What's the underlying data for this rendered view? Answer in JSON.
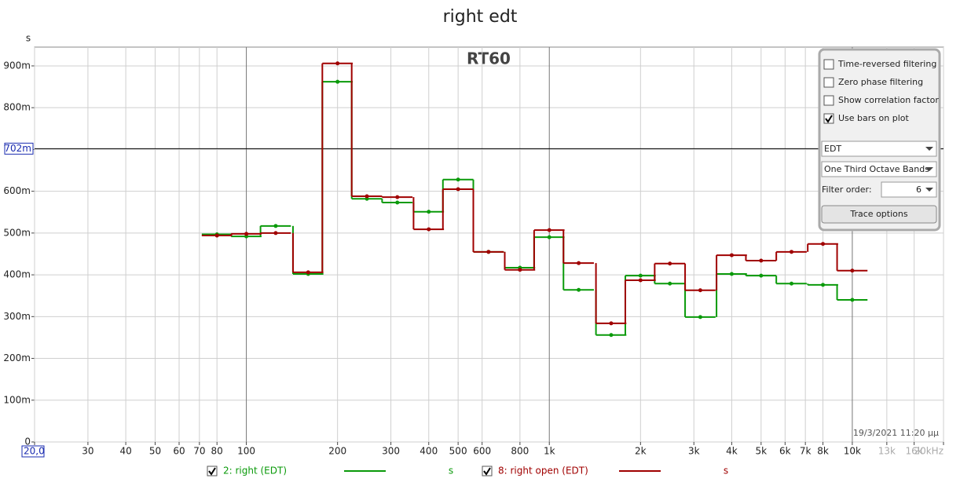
{
  "chart_data": {
    "type": "step",
    "title": "right edt",
    "ylabel": "s",
    "annotation": "RT60",
    "timestamp": "19/3/2021 11:20 μμ",
    "xscale": "log",
    "xlim": [
      20,
      20000
    ],
    "ylim": [
      0,
      0.945
    ],
    "grid": true,
    "xticks": [
      {
        "value": 20,
        "label": "20,0"
      },
      30,
      40,
      50,
      60,
      70,
      80,
      100,
      200,
      300,
      400,
      500,
      600,
      800,
      {
        "value": 1000,
        "label": "1k"
      },
      {
        "value": 2000,
        "label": "2k"
      },
      {
        "value": 3000,
        "label": "3k"
      },
      {
        "value": 4000,
        "label": "4k"
      },
      {
        "value": 5000,
        "label": "5k"
      },
      {
        "value": 6000,
        "label": "6k"
      },
      {
        "value": 7000,
        "label": "7k"
      },
      {
        "value": 8000,
        "label": "8k"
      },
      {
        "value": 10000,
        "label": "10k"
      },
      {
        "value": 13000,
        "label": "13k"
      },
      {
        "value": 16000,
        "label": "16k"
      },
      {
        "value": 20000,
        "label": "20kHz"
      }
    ],
    "yticks": [
      0,
      {
        "value": 0.1,
        "label": "100m"
      },
      {
        "value": 0.2,
        "label": "200m"
      },
      {
        "value": 0.3,
        "label": "300m"
      },
      {
        "value": 0.4,
        "label": "400m"
      },
      {
        "value": 0.5,
        "label": "500m"
      },
      {
        "value": 0.6,
        "label": "600m"
      },
      {
        "value": 0.7,
        "label": "700m"
      },
      {
        "value": 0.8,
        "label": "800m"
      },
      {
        "value": 0.9,
        "label": "900m"
      }
    ],
    "cursor": {
      "value": 0.702,
      "label": "702m"
    },
    "x": [
      80,
      100,
      125,
      160,
      200,
      250,
      315,
      400,
      500,
      630,
      800,
      1000,
      1250,
      1600,
      2000,
      2500,
      3150,
      4000,
      5000,
      6300,
      8000,
      10000
    ],
    "series": [
      {
        "name": "2: right (EDT)",
        "color": "#0a9a0a",
        "unit": "s",
        "values": [
          0.497,
          0.492,
          0.517,
          0.402,
          0.862,
          0.582,
          0.573,
          0.551,
          0.628,
          0.455,
          0.417,
          0.49,
          0.364,
          0.256,
          0.398,
          0.379,
          0.299,
          0.402,
          0.398,
          0.379,
          0.376,
          0.34
        ]
      },
      {
        "name": "8: right open (EDT)",
        "color": "#a00000",
        "unit": "s",
        "values": [
          0.494,
          0.498,
          0.5,
          0.406,
          0.906,
          0.588,
          0.586,
          0.509,
          0.605,
          0.455,
          0.412,
          0.507,
          0.428,
          0.284,
          0.387,
          0.427,
          0.363,
          0.447,
          0.434,
          0.455,
          0.474,
          0.41
        ]
      }
    ]
  },
  "panel": {
    "checkboxes": [
      {
        "label": "Time-reversed filtering",
        "checked": false
      },
      {
        "label": "Zero phase filtering",
        "checked": false
      },
      {
        "label": "Show correlation factor",
        "checked": false
      },
      {
        "label": "Use bars on plot",
        "checked": true
      }
    ],
    "measure": "EDT",
    "bands": "One Third Octave Bands",
    "filter_label": "Filter order:",
    "filter_value": 6,
    "button": "Trace options"
  }
}
